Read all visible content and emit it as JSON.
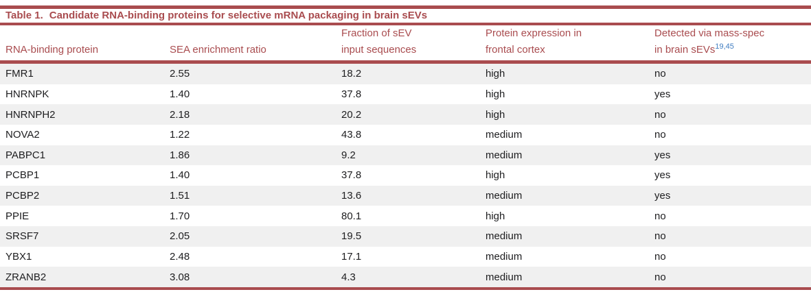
{
  "title": {
    "label": "Table 1.",
    "text": "Candidate RNA-binding proteins for selective mRNA packaging in brain sEVs"
  },
  "colors": {
    "accent_red": "#a94c4f",
    "row_stripe": "#f0f0f0",
    "body_text": "#1d1d1f",
    "citation_blue": "#3f7cc0"
  },
  "columns": [
    {
      "id": "protein",
      "lines": [
        "RNA-binding protein"
      ]
    },
    {
      "id": "sea_ratio",
      "lines": [
        "SEA enrichment ratio"
      ]
    },
    {
      "id": "fraction",
      "lines": [
        "Fraction of sEV",
        "input sequences"
      ]
    },
    {
      "id": "expression",
      "lines": [
        "Protein expression in",
        "frontal cortex"
      ]
    },
    {
      "id": "mass_spec",
      "lines": [
        "Detected via mass-spec",
        "in brain sEVs"
      ],
      "superscript": "19,45"
    }
  ],
  "rows": [
    {
      "protein": "FMR1",
      "sea_ratio": "2.55",
      "fraction": "18.2",
      "expression": "high",
      "mass_spec": "no"
    },
    {
      "protein": "HNRNPK",
      "sea_ratio": "1.40",
      "fraction": "37.8",
      "expression": "high",
      "mass_spec": "yes"
    },
    {
      "protein": "HNRNPH2",
      "sea_ratio": "2.18",
      "fraction": "20.2",
      "expression": "high",
      "mass_spec": "no"
    },
    {
      "protein": "NOVA2",
      "sea_ratio": "1.22",
      "fraction": "43.8",
      "expression": "medium",
      "mass_spec": "no"
    },
    {
      "protein": "PABPC1",
      "sea_ratio": "1.86",
      "fraction": "9.2",
      "expression": "medium",
      "mass_spec": "yes"
    },
    {
      "protein": "PCBP1",
      "sea_ratio": "1.40",
      "fraction": "37.8",
      "expression": "high",
      "mass_spec": "yes"
    },
    {
      "protein": "PCBP2",
      "sea_ratio": "1.51",
      "fraction": "13.6",
      "expression": "medium",
      "mass_spec": "yes"
    },
    {
      "protein": "PPIE",
      "sea_ratio": "1.70",
      "fraction": "80.1",
      "expression": "high",
      "mass_spec": "no"
    },
    {
      "protein": "SRSF7",
      "sea_ratio": "2.05",
      "fraction": "19.5",
      "expression": "medium",
      "mass_spec": "no"
    },
    {
      "protein": "YBX1",
      "sea_ratio": "2.48",
      "fraction": "17.1",
      "expression": "medium",
      "mass_spec": "no"
    },
    {
      "protein": "ZRANB2",
      "sea_ratio": "3.08",
      "fraction": "4.3",
      "expression": "medium",
      "mass_spec": "no"
    }
  ]
}
